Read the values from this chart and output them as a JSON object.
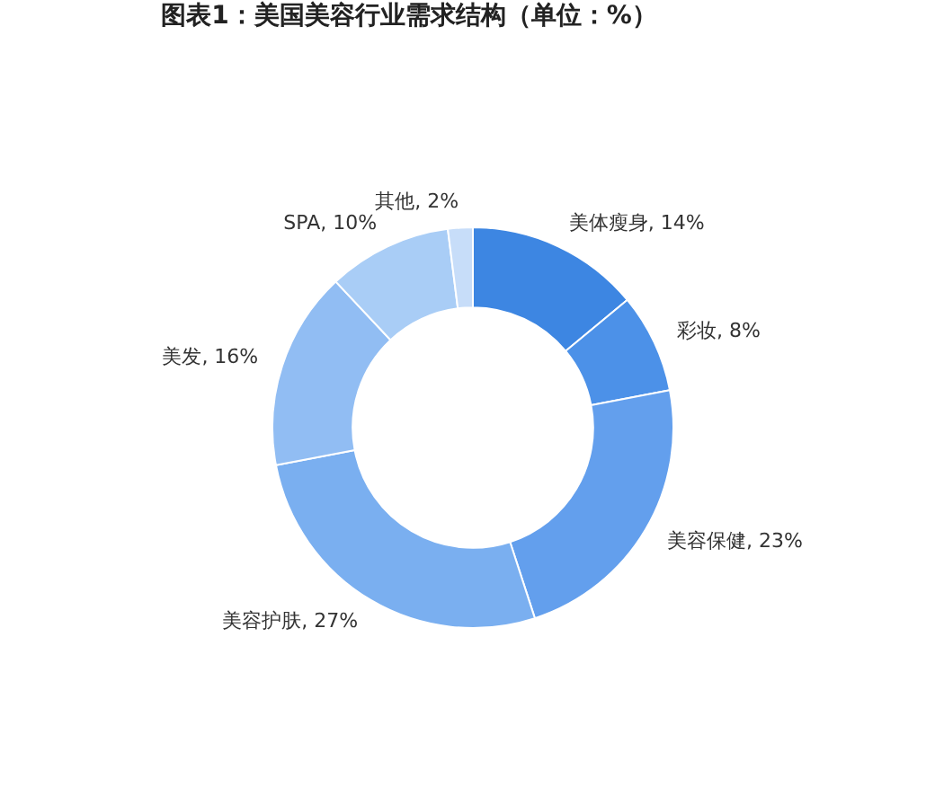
{
  "chart_data": {
    "type": "donut",
    "title": "图表1：美国美容行业需求结构（单位：%）",
    "categories": [
      "美体瘦身",
      "彩妆",
      "美容保健",
      "美容护肤",
      "美发",
      "SPA",
      "其他"
    ],
    "values": [
      14,
      8,
      23,
      27,
      16,
      10,
      2
    ],
    "value_labels": [
      "14%",
      "8%",
      "23%",
      "27%",
      "16%",
      "10%",
      "2%"
    ],
    "colors": [
      "#3d86e2",
      "#4c91e8",
      "#639fed",
      "#7aaff0",
      "#91bdf3",
      "#a9cdf6",
      "#c7ddf9"
    ],
    "legend": false
  }
}
